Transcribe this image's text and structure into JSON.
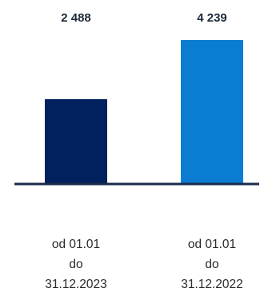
{
  "chart_data": {
    "type": "bar",
    "categories": [
      [
        "od 01.01",
        "do",
        "31.12.2023"
      ],
      [
        "od 01.01",
        "do",
        "31.12.2022"
      ]
    ],
    "values": [
      2488,
      4239
    ],
    "data_labels": [
      "2 488",
      "4 239"
    ],
    "colors": [
      "#00215e",
      "#0a7cd2"
    ],
    "axis_color": "#1b2a4a",
    "ylim": [
      0,
      4500
    ],
    "grid": false
  }
}
